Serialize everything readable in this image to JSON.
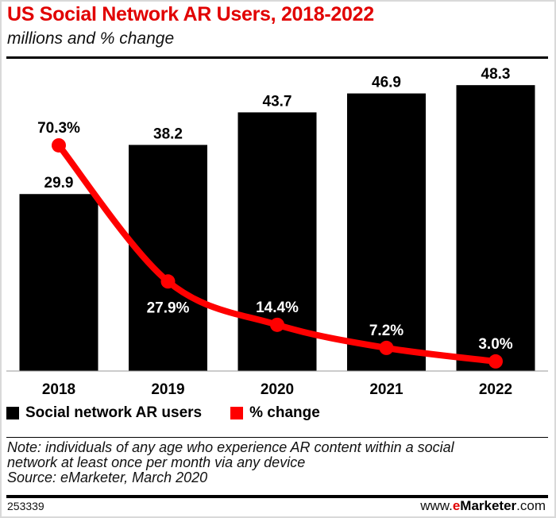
{
  "title": "US Social Network AR Users, 2018-2022",
  "subtitle": "millions and % change",
  "chart_data": {
    "type": "bar+line",
    "categories": [
      "2018",
      "2019",
      "2020",
      "2021",
      "2022"
    ],
    "series": [
      {
        "name": "Social network AR users",
        "type": "bar",
        "values": [
          29.9,
          38.2,
          43.7,
          46.9,
          48.3
        ],
        "labels": [
          "29.9",
          "38.2",
          "43.7",
          "46.9",
          "48.3"
        ],
        "color": "#000000"
      },
      {
        "name": "% change",
        "type": "line",
        "values": [
          70.3,
          27.9,
          14.4,
          7.2,
          3.0
        ],
        "labels": [
          "70.3%",
          "27.9%",
          "14.4%",
          "7.2%",
          "3.0%"
        ],
        "color": "#ff0000"
      }
    ],
    "grid": false,
    "legend": "bottom-left"
  },
  "note": "Note: individuals of any age who experience AR content within a social network at least once per month via any device",
  "source": "Source: eMarketer, March 2020",
  "chart_id": "253339",
  "logo": {
    "prefix": "www.",
    "e": "e",
    "brand": "Marketer",
    "suffix": ".com"
  }
}
